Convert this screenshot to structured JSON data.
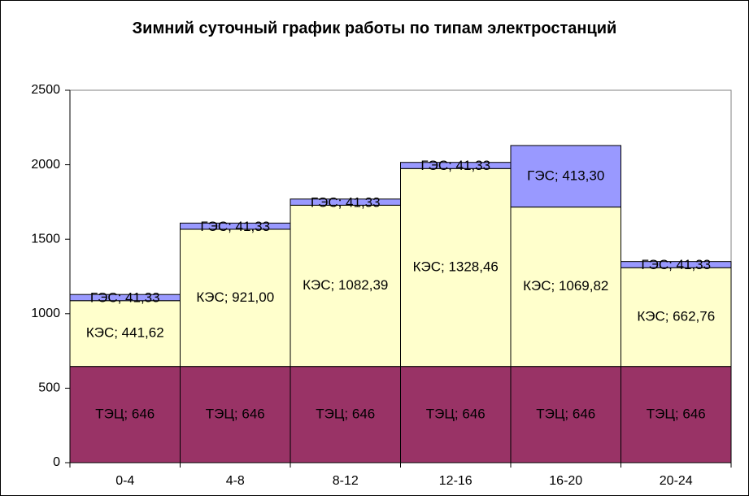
{
  "chart_data": {
    "type": "bar",
    "stacked": true,
    "title": "Зимний суточный график работы по типам электростанций",
    "xlabel": "",
    "ylabel": "",
    "categories": [
      "0-4",
      "4-8",
      "8-12",
      "12-16",
      "16-20",
      "20-24"
    ],
    "ylim": [
      0,
      2500
    ],
    "yticks": [
      0,
      500,
      1000,
      1500,
      2000,
      2500
    ],
    "grid": false,
    "legend": "none",
    "series": [
      {
        "name": "ТЭЦ",
        "color": "#993366",
        "values": [
          646,
          646,
          646,
          646,
          646,
          646
        ],
        "labels": [
          "ТЭЦ; 646",
          "ТЭЦ; 646",
          "ТЭЦ; 646",
          "ТЭЦ; 646",
          "ТЭЦ; 646",
          "ТЭЦ; 646"
        ]
      },
      {
        "name": "КЭС",
        "color": "#ffffcc",
        "values": [
          441.62,
          921.0,
          1082.39,
          1328.46,
          1069.82,
          662.76
        ],
        "labels": [
          "КЭС; 441,62",
          "КЭС; 921,00",
          "КЭС; 1082,39",
          "КЭС; 1328,46",
          "КЭС; 1069,82",
          "КЭС; 662,76"
        ]
      },
      {
        "name": "ГЭС",
        "color": "#9999ff",
        "values": [
          41.33,
          41.33,
          41.33,
          41.33,
          413.3,
          41.33
        ],
        "labels": [
          "ГЭС; 41,33",
          "ГЭС; 41,33",
          "ГЭС; 41,33",
          "ГЭС; 41,33",
          "ГЭС; 413,30",
          "ГЭС; 41,33"
        ]
      }
    ]
  }
}
